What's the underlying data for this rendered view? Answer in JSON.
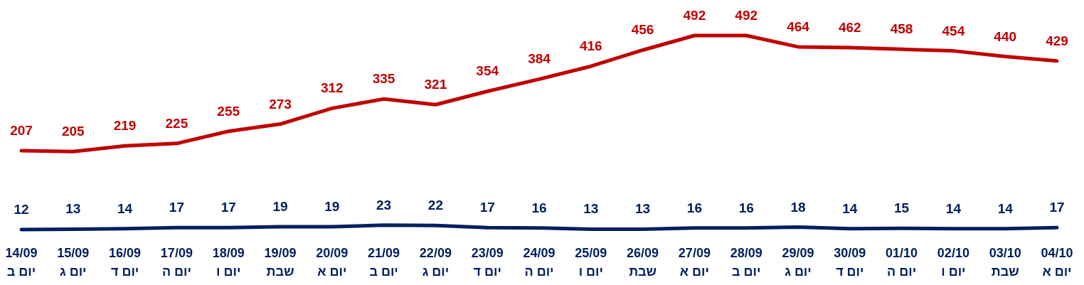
{
  "chart_data": {
    "type": "line",
    "categories": [
      "14/09 יום ב",
      "15/09 יום ג",
      "16/09 יום ד",
      "17/09 יום ה",
      "18/09 יום ו",
      "19/09 שבת",
      "20/09 יום א",
      "21/09 יום ב",
      "22/09 יום ג",
      "23/09 יום ד",
      "24/09 יום ה",
      "25/09 יום ו",
      "26/09 שבת",
      "27/09 יום א",
      "28/09 יום ב",
      "29/09 יום ג",
      "30/09 יום ד",
      "01/10 יום ה",
      "02/10 יום ו",
      "03/10 שבת",
      "04/10 יום א"
    ],
    "series": [
      {
        "color": "#c00000",
        "values": [
          207,
          205,
          219,
          225,
          255,
          273,
          312,
          335,
          321,
          354,
          384,
          416,
          456,
          492,
          492,
          464,
          462,
          458,
          454,
          440,
          429
        ]
      },
      {
        "color": "#002060",
        "values": [
          12,
          13,
          14,
          17,
          17,
          19,
          19,
          23,
          22,
          17,
          16,
          13,
          13,
          16,
          16,
          18,
          14,
          15,
          14,
          14,
          17
        ]
      }
    ],
    "data_labels": true,
    "marker": "none",
    "line_style": "solid"
  }
}
